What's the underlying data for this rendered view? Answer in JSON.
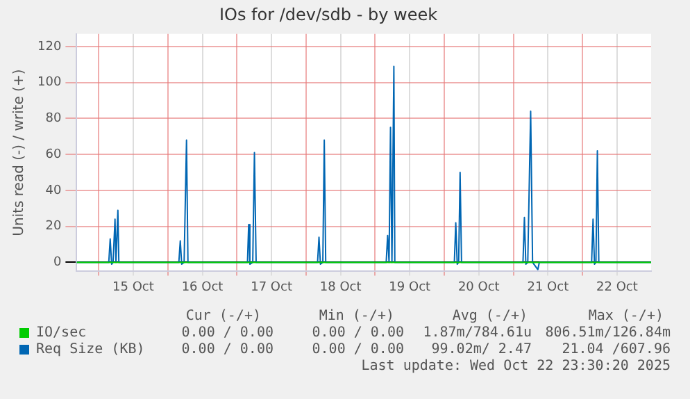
{
  "chart_data": {
    "type": "line",
    "title": "IOs for /dev/sdb - by week",
    "ylabel": "Units read (-) / write (+)",
    "xlim": [
      "2025-10-14T16:20",
      "2025-10-22T23:50"
    ],
    "xticks": [
      {
        "value": "2025-10-15T00:00",
        "label": null
      },
      {
        "value": "2025-10-15T12:00",
        "label": "15 Oct"
      },
      {
        "value": "2025-10-16T00:00",
        "label": null
      },
      {
        "value": "2025-10-16T12:00",
        "label": "16 Oct"
      },
      {
        "value": "2025-10-17T00:00",
        "label": null
      },
      {
        "value": "2025-10-17T12:00",
        "label": "17 Oct"
      },
      {
        "value": "2025-10-18T00:00",
        "label": null
      },
      {
        "value": "2025-10-18T12:00",
        "label": "18 Oct"
      },
      {
        "value": "2025-10-19T00:00",
        "label": null
      },
      {
        "value": "2025-10-19T12:00",
        "label": "19 Oct"
      },
      {
        "value": "2025-10-20T00:00",
        "label": null
      },
      {
        "value": "2025-10-20T12:00",
        "label": "20 Oct"
      },
      {
        "value": "2025-10-21T00:00",
        "label": null
      },
      {
        "value": "2025-10-21T12:00",
        "label": "21 Oct"
      },
      {
        "value": "2025-10-22T00:00",
        "label": null
      },
      {
        "value": "2025-10-22T12:00",
        "label": "22 Oct"
      }
    ],
    "ylim": [
      -5,
      127
    ],
    "yticks": [
      0,
      20,
      40,
      60,
      80,
      100,
      120
    ],
    "grid": true,
    "legend": "bottom",
    "marker": "none",
    "series": [
      {
        "name": "IO/sec",
        "color": "#00cc00",
        "x": [
          "2025-10-14T16:20",
          "2025-10-22T23:50"
        ],
        "values": [
          0,
          0
        ]
      },
      {
        "name": "Req Size (KB)",
        "color": "#0066b3",
        "x": [
          "2025-10-14T16:20",
          "2025-10-15T03:30",
          "2025-10-15T04:00",
          "2025-10-15T04:30",
          "2025-10-15T05:00",
          "2025-10-15T05:40",
          "2025-10-15T06:00",
          "2025-10-15T06:40",
          "2025-10-15T07:00",
          "2025-10-16T03:50",
          "2025-10-16T04:20",
          "2025-10-16T04:50",
          "2025-10-16T05:40",
          "2025-10-16T06:30",
          "2025-10-16T07:00",
          "2025-10-17T03:40",
          "2025-10-17T04:05",
          "2025-10-17T04:30",
          "2025-10-17T05:30",
          "2025-10-17T06:05",
          "2025-10-17T06:40",
          "2025-10-18T04:00",
          "2025-10-18T04:30",
          "2025-10-18T05:00",
          "2025-10-18T05:50",
          "2025-10-18T06:20",
          "2025-10-18T06:50",
          "2025-10-19T03:50",
          "2025-10-19T04:20",
          "2025-10-19T04:50",
          "2025-10-19T05:20",
          "2025-10-19T05:50",
          "2025-10-19T06:30",
          "2025-10-19T06:50",
          "2025-10-20T03:30",
          "2025-10-20T04:00",
          "2025-10-20T04:30",
          "2025-10-20T05:00",
          "2025-10-20T05:30",
          "2025-10-20T06:00",
          "2025-10-21T03:20",
          "2025-10-21T03:50",
          "2025-10-21T04:20",
          "2025-10-21T05:00",
          "2025-10-21T06:00",
          "2025-10-21T06:40",
          "2025-10-21T08:30",
          "2025-10-21T09:00",
          "2025-10-22T03:10",
          "2025-10-22T03:40",
          "2025-10-22T04:10",
          "2025-10-22T04:40",
          "2025-10-22T05:10",
          "2025-10-22T05:40",
          "2025-10-22T23:50"
        ],
        "values": [
          0,
          0,
          13,
          -1,
          0,
          24,
          0,
          29,
          0,
          0,
          12,
          -1,
          0,
          68,
          0,
          0,
          21,
          -1,
          0,
          61,
          0,
          0,
          14,
          -1,
          0,
          68,
          0,
          0,
          15,
          0,
          75,
          0,
          109,
          0,
          0,
          22,
          -1,
          0,
          50,
          0,
          0,
          25,
          -1,
          0,
          84,
          0,
          -4,
          0,
          0,
          24,
          -1,
          0,
          62,
          0,
          0
        ]
      }
    ],
    "annotations": [
      "Cur (-/+)",
      "Min (-/+)",
      "Avg (-/+)",
      "Max (-/+)",
      "0.00 / 0.00",
      "0.00 / 0.00",
      "1.87m/784.61u",
      "806.51m/126.84m",
      "0.00 / 0.00",
      "0.00 / 0.00",
      "99.02m/ 2.47",
      "21.04 /607.96",
      "Last update: Wed Oct 22 23:30:20 2025"
    ]
  }
}
